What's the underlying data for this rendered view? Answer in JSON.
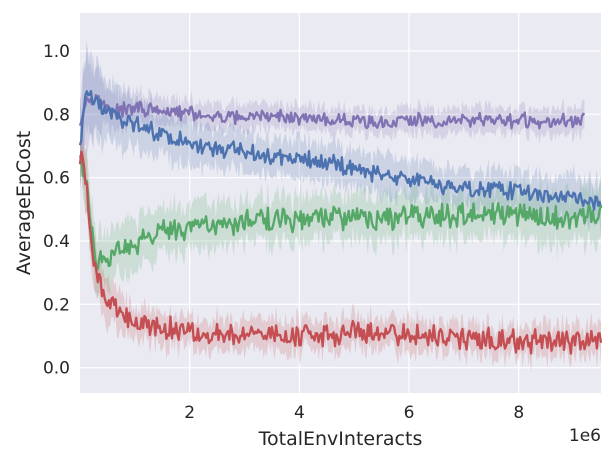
{
  "chart_data": {
    "type": "line",
    "title": "",
    "xlabel": "TotalEnvInteracts",
    "ylabel": "AverageEpCost",
    "x_offset_label": "1e6",
    "xlim": [
      0.0,
      9.5
    ],
    "ylim": [
      -0.08,
      1.12
    ],
    "x_ticks": [
      2,
      4,
      6,
      8
    ],
    "x_tick_labels": [
      "2",
      "4",
      "6",
      "8"
    ],
    "y_ticks": [
      0.0,
      0.2,
      0.4,
      0.6,
      0.8,
      1.0
    ],
    "y_tick_labels": [
      "0.0",
      "0.2",
      "0.4",
      "0.6",
      "0.8",
      "1.0"
    ],
    "grid": true,
    "background": "#eaeaf2",
    "series": [
      {
        "color": "#8172b3",
        "x": [
          0.0,
          0.1,
          0.2,
          0.4,
          0.6,
          1.0,
          1.5,
          2.0,
          2.5,
          3.0,
          3.5,
          4.0,
          4.5,
          5.0,
          5.5,
          6.0,
          6.5,
          7.0,
          7.5,
          8.0,
          8.5,
          9.0,
          9.2
        ],
        "y": [
          0.78,
          0.84,
          0.86,
          0.83,
          0.81,
          0.82,
          0.81,
          0.8,
          0.79,
          0.79,
          0.79,
          0.79,
          0.78,
          0.78,
          0.77,
          0.78,
          0.78,
          0.78,
          0.78,
          0.78,
          0.78,
          0.78,
          0.79
        ],
        "spread": [
          0.1,
          0.16,
          0.14,
          0.08,
          0.06,
          0.05,
          0.04,
          0.04,
          0.04,
          0.04,
          0.04,
          0.04,
          0.04,
          0.04,
          0.04,
          0.04,
          0.04,
          0.04,
          0.04,
          0.04,
          0.04,
          0.04,
          0.04
        ],
        "noise": 0.018
      },
      {
        "color": "#4c72b0",
        "x": [
          0.0,
          0.1,
          0.2,
          0.4,
          0.6,
          1.0,
          1.5,
          2.0,
          2.5,
          3.0,
          3.5,
          4.0,
          4.5,
          5.0,
          5.5,
          6.0,
          6.5,
          7.0,
          7.5,
          8.0,
          8.5,
          9.0,
          9.5
        ],
        "y": [
          0.7,
          0.86,
          0.85,
          0.82,
          0.8,
          0.77,
          0.74,
          0.71,
          0.69,
          0.68,
          0.66,
          0.66,
          0.65,
          0.63,
          0.61,
          0.6,
          0.58,
          0.57,
          0.56,
          0.56,
          0.55,
          0.53,
          0.52
        ],
        "spread": [
          0.12,
          0.12,
          0.12,
          0.1,
          0.09,
          0.08,
          0.07,
          0.07,
          0.06,
          0.06,
          0.06,
          0.06,
          0.06,
          0.06,
          0.06,
          0.06,
          0.06,
          0.06,
          0.06,
          0.06,
          0.06,
          0.07,
          0.07
        ],
        "noise": 0.022
      },
      {
        "color": "#55a868",
        "x": [
          0.0,
          0.1,
          0.2,
          0.3,
          0.5,
          0.8,
          1.0,
          1.5,
          2.0,
          2.5,
          3.0,
          3.5,
          4.0,
          4.5,
          5.0,
          5.5,
          6.0,
          6.5,
          7.0,
          7.5,
          8.0,
          8.5,
          9.0,
          9.5
        ],
        "y": [
          0.66,
          0.6,
          0.45,
          0.34,
          0.35,
          0.38,
          0.39,
          0.43,
          0.44,
          0.45,
          0.46,
          0.47,
          0.47,
          0.47,
          0.47,
          0.47,
          0.48,
          0.48,
          0.48,
          0.48,
          0.48,
          0.48,
          0.48,
          0.48
        ],
        "spread": [
          0.08,
          0.08,
          0.09,
          0.09,
          0.08,
          0.08,
          0.08,
          0.07,
          0.07,
          0.07,
          0.07,
          0.07,
          0.07,
          0.07,
          0.07,
          0.07,
          0.07,
          0.07,
          0.07,
          0.07,
          0.08,
          0.08,
          0.08,
          0.08
        ],
        "noise": 0.03
      },
      {
        "color": "#c44e52",
        "x": [
          0.0,
          0.05,
          0.1,
          0.2,
          0.3,
          0.5,
          0.8,
          1.0,
          1.5,
          2.0,
          2.5,
          3.0,
          3.5,
          4.0,
          4.5,
          5.0,
          5.5,
          6.0,
          6.5,
          7.0,
          7.5,
          8.0,
          8.5,
          9.0,
          9.5
        ],
        "y": [
          0.64,
          0.66,
          0.6,
          0.4,
          0.3,
          0.21,
          0.18,
          0.14,
          0.12,
          0.11,
          0.1,
          0.1,
          0.1,
          0.1,
          0.1,
          0.11,
          0.11,
          0.11,
          0.1,
          0.09,
          0.09,
          0.08,
          0.08,
          0.08,
          0.08
        ],
        "spread": [
          0.08,
          0.08,
          0.08,
          0.08,
          0.08,
          0.07,
          0.06,
          0.05,
          0.05,
          0.05,
          0.05,
          0.05,
          0.05,
          0.05,
          0.05,
          0.05,
          0.05,
          0.05,
          0.05,
          0.05,
          0.05,
          0.05,
          0.05,
          0.05,
          0.05
        ],
        "noise": 0.03
      }
    ]
  }
}
